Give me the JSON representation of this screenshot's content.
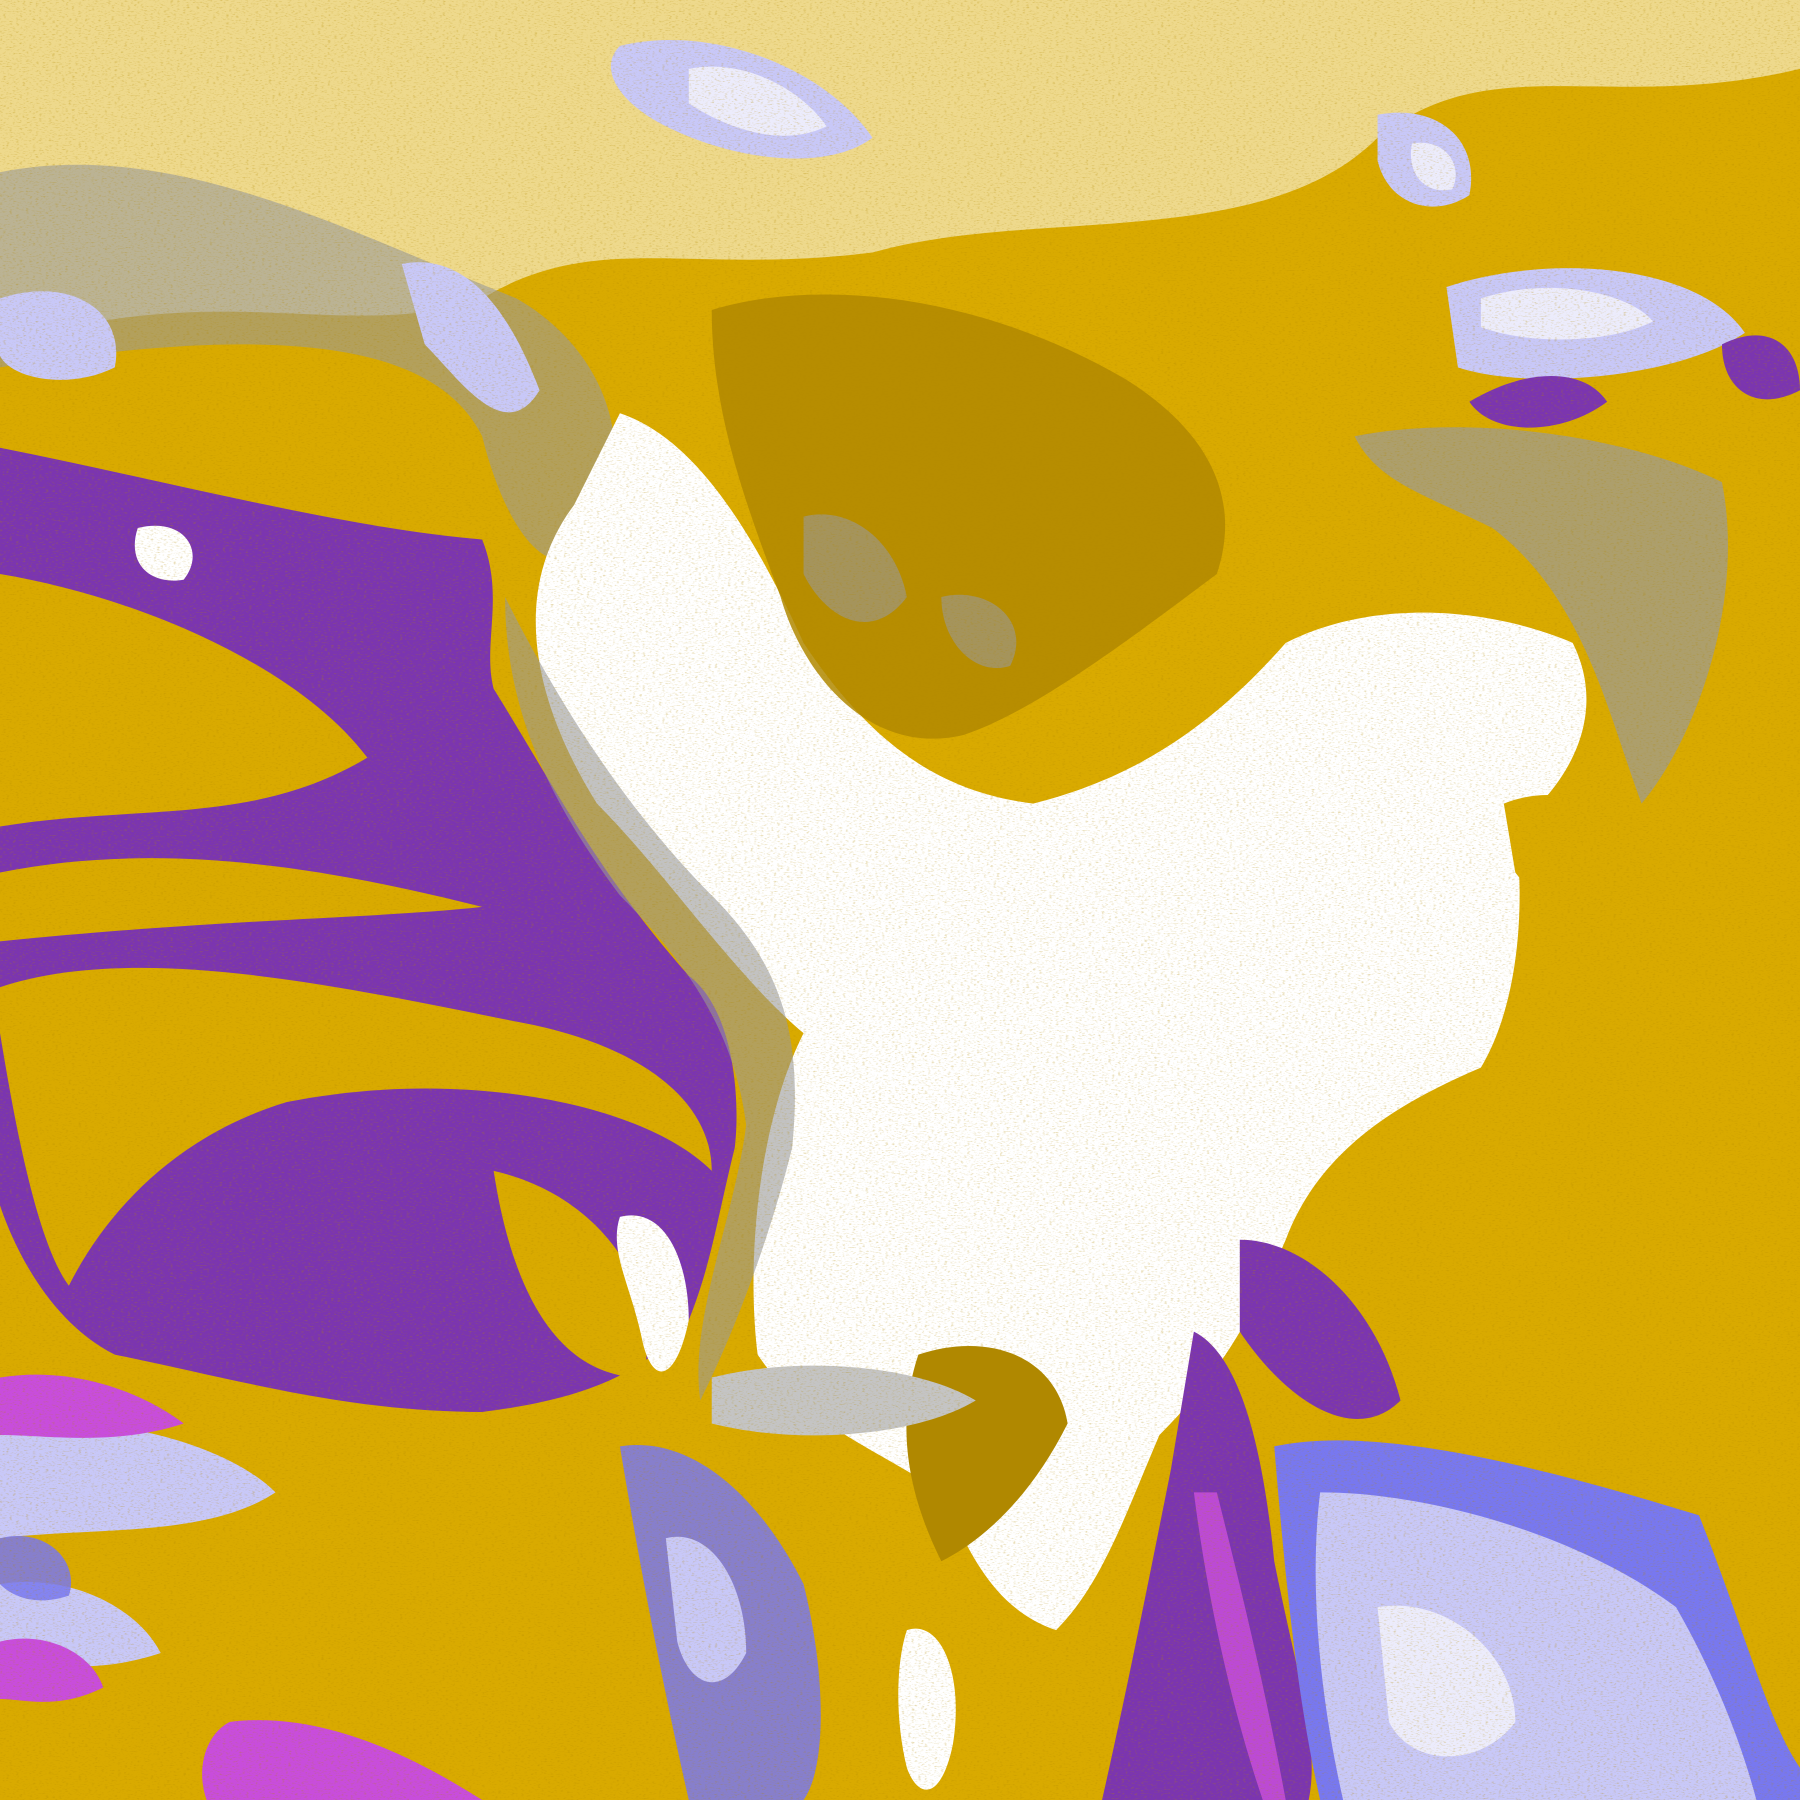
{
  "image": {
    "kind": "satellite cloud-classification composite",
    "colors": {
      "clear": "#ffffff",
      "gold": "#d9aa00",
      "dark_gold": "#b08800",
      "purple": "#7b35b0",
      "magenta": "#c84ddc",
      "periwinkle": "#7878f0",
      "lavender": "#c8c8f8",
      "pale_lavender": "#ececfc",
      "grey": "#9a9a9a",
      "light_grey": "#c4c4c4"
    }
  }
}
